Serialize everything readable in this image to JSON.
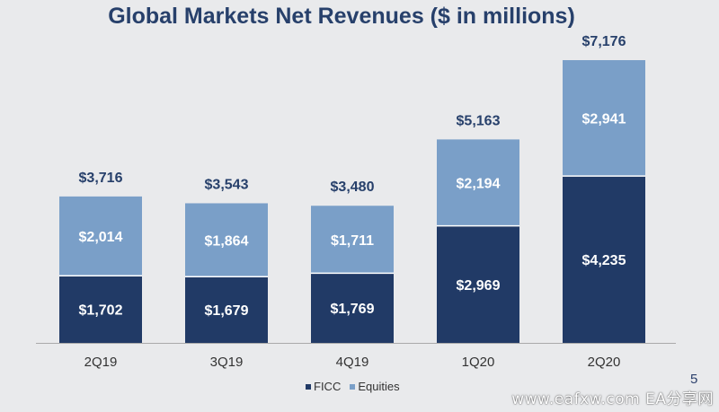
{
  "colors": {
    "ficc": "#213a66",
    "equities": "#7a9fc8",
    "title": "#27406b",
    "total_label": "#27406b",
    "axis": "#aaaaaa"
  },
  "chart_data": {
    "type": "bar",
    "stacked": true,
    "title": "Global Markets Net Revenues ($ in millions)",
    "categories": [
      "2Q19",
      "3Q19",
      "4Q19",
      "1Q20",
      "2Q20"
    ],
    "series": [
      {
        "name": "FICC",
        "values": [
          1702,
          1679,
          1769,
          2969,
          4235
        ],
        "labels": [
          "$1,702",
          "$1,679",
          "$1,769",
          "$2,969",
          "$4,235"
        ]
      },
      {
        "name": "Equities",
        "values": [
          2014,
          1864,
          1711,
          2194,
          2941
        ],
        "labels": [
          "$2,014",
          "$1,864",
          "$1,711",
          "$2,194",
          "$2,941"
        ]
      }
    ],
    "totals": [
      3716,
      3543,
      3480,
      5163,
      7176
    ],
    "total_labels": [
      "$3,716",
      "$3,543",
      "$3,480",
      "$5,163",
      "$7,176"
    ],
    "ylim": [
      0,
      7176
    ],
    "grid": false,
    "legend_position": "bottom-center"
  },
  "legend": {
    "ficc": "FICC",
    "equities": "Equities"
  },
  "page_number": "5",
  "watermark": "www.eafxw.com  EA分享网"
}
